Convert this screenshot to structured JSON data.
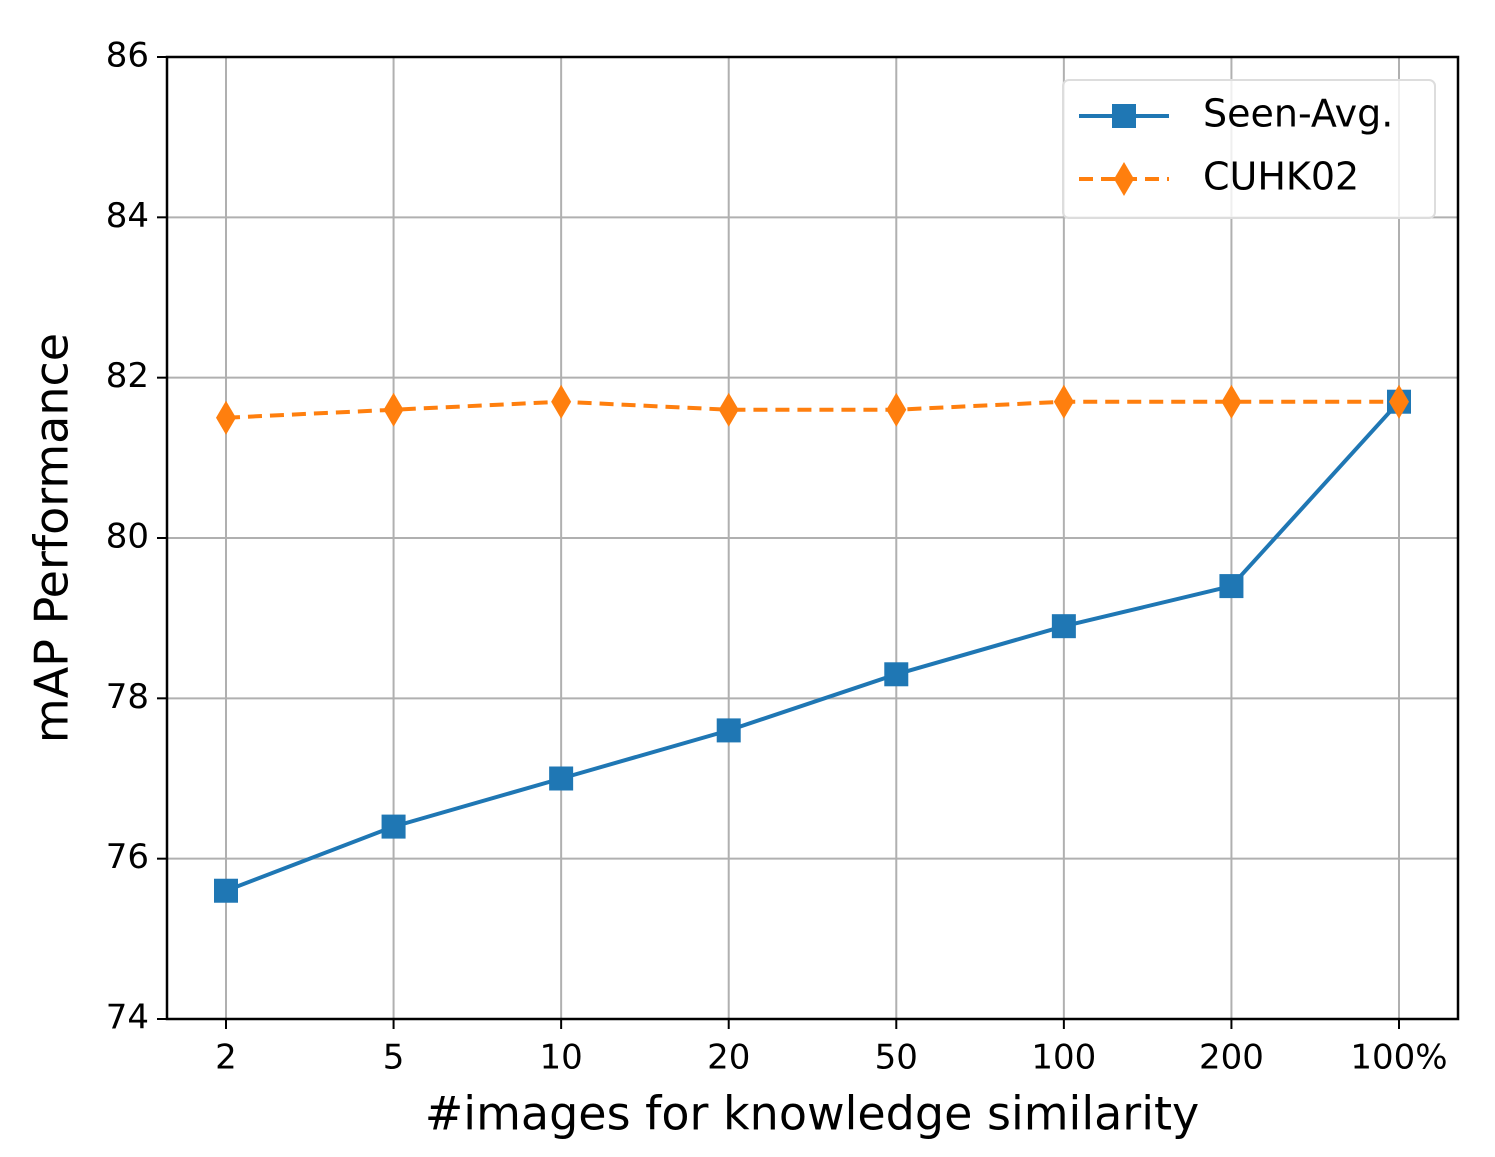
{
  "chart_data": {
    "type": "line",
    "xlabel": "#images for knowledge similarity",
    "ylabel": "mAP Performance",
    "categories": [
      "2",
      "5",
      "10",
      "20",
      "50",
      "100",
      "200",
      "100%"
    ],
    "series": [
      {
        "name": "Seen-Avg.",
        "color": "#1f77b4",
        "marker": "square",
        "linestyle": "solid",
        "values": [
          75.6,
          76.4,
          77.0,
          77.6,
          78.3,
          78.9,
          79.4,
          81.7
        ]
      },
      {
        "name": "CUHK02",
        "color": "#ff7f0e",
        "marker": "diamond",
        "linestyle": "dashed",
        "values": [
          81.5,
          81.6,
          81.7,
          81.6,
          81.6,
          81.7,
          81.7,
          81.7
        ]
      }
    ],
    "ylim": [
      74,
      86
    ],
    "yticks": [
      74,
      76,
      78,
      80,
      82,
      84,
      86
    ],
    "grid": true,
    "legend": "upper right"
  }
}
